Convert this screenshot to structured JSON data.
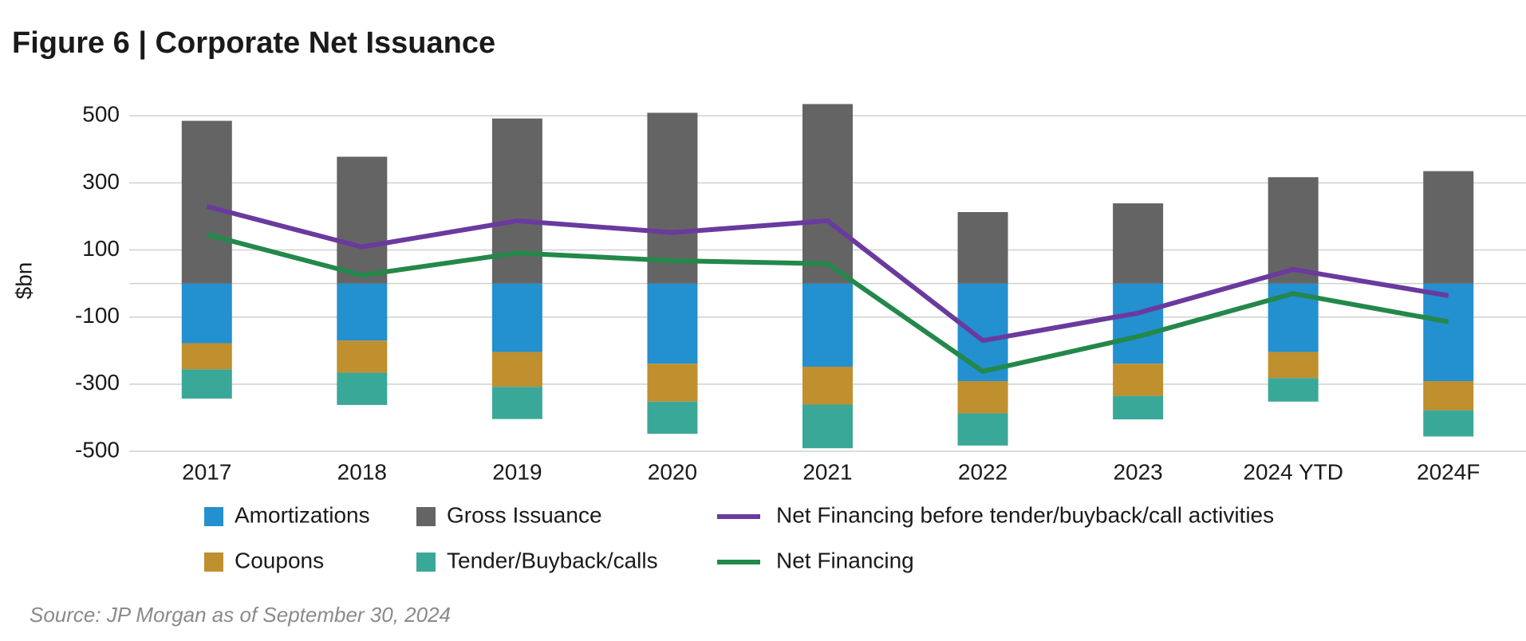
{
  "chart_data": {
    "type": "bar",
    "title": "Figure 6 | Corporate Net Issuance",
    "y_label": "$bn",
    "source": "Source: JP Morgan as of September 30, 2024",
    "categories": [
      "2017",
      "2018",
      "2019",
      "2020",
      "2021",
      "2022",
      "2023",
      "2024 YTD",
      "2024F"
    ],
    "series": [
      {
        "name": "Amortizations",
        "kind": "bar",
        "color": "#2390d0",
        "values": [
          -178,
          -170,
          -204,
          -239,
          -248,
          -291,
          -239,
          -204,
          -291
        ]
      },
      {
        "name": "Gross Issuance",
        "kind": "bar",
        "color": "#646464",
        "values": [
          485,
          378,
          492,
          509,
          535,
          213,
          239,
          317,
          335
        ]
      },
      {
        "name": "Net Financing before tender/buyback/call activities",
        "kind": "line",
        "color": "#6a3a9e",
        "values": [
          230,
          109,
          187,
          152,
          187,
          -170,
          -88,
          42,
          -36
        ]
      },
      {
        "name": "Coupons",
        "kind": "bar",
        "color": "#c08f2e",
        "values": [
          -78,
          -96,
          -104,
          -113,
          -113,
          -96,
          -96,
          -78,
          -87
        ]
      },
      {
        "name": "Tender/Buyback/calls",
        "kind": "bar",
        "color": "#3aa899",
        "values": [
          -87,
          -96,
          -96,
          -96,
          -130,
          -96,
          -70,
          -70,
          -78
        ]
      },
      {
        "name": "Net Financing",
        "kind": "line",
        "color": "#23884a",
        "values": [
          146,
          25,
          91,
          68,
          59,
          -262,
          -158,
          -30,
          -114
        ]
      }
    ],
    "ylim": [
      -500,
      560
    ],
    "yticks": [
      -500,
      -300,
      -100,
      100,
      300,
      500
    ],
    "grid": true
  }
}
